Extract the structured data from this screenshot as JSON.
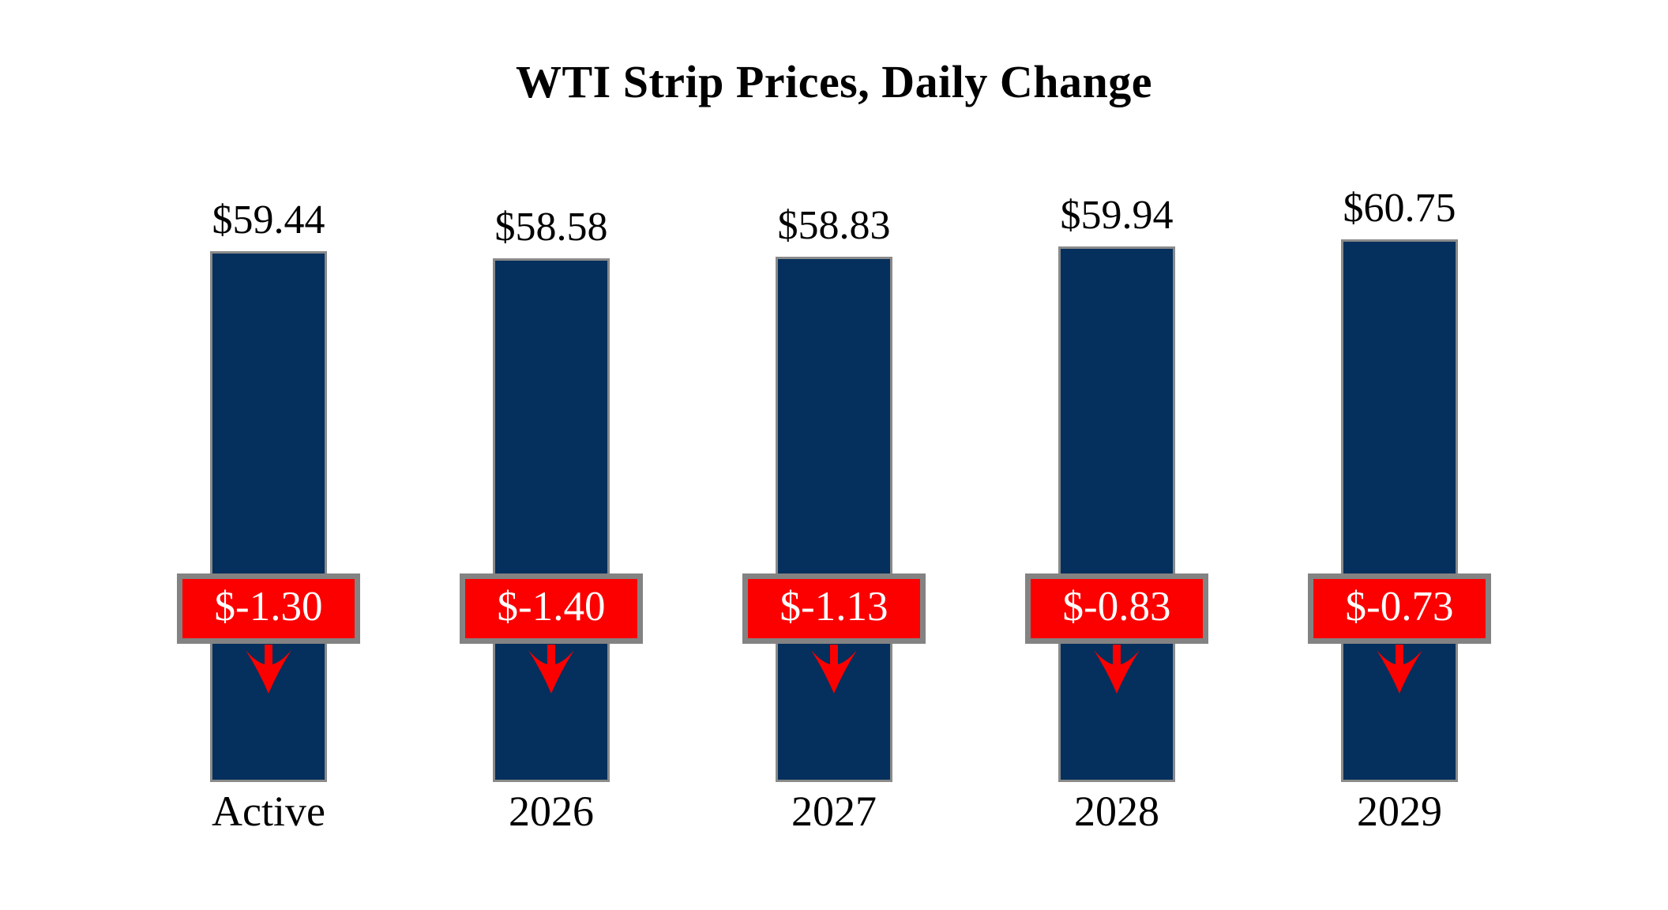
{
  "chart_data": {
    "type": "bar",
    "title": "WTI Strip Prices, Daily Change",
    "categories": [
      "Active",
      "2026",
      "2027",
      "2028",
      "2029"
    ],
    "series": [
      {
        "name": "Strip Price",
        "values": [
          59.44,
          58.58,
          58.83,
          59.94,
          60.75
        ],
        "labels": [
          "$59.44",
          "$58.58",
          "$58.83",
          "$59.94",
          "$60.75"
        ]
      },
      {
        "name": "Daily Change",
        "values": [
          -1.3,
          -1.4,
          -1.13,
          -0.83,
          -0.73
        ],
        "labels": [
          "$-1.30",
          "$-1.40",
          "$-1.13",
          "$-0.83",
          "$-0.73"
        ]
      }
    ],
    "ylim": [
      0,
      61
    ],
    "grid": false,
    "legend": "none",
    "annotation_style": "red badge with white text and red down arrow overlaid on each bar",
    "colors": {
      "bar": "#052f5c",
      "bar_border": "#8a8a8a",
      "change_box": "#fc0000",
      "change_box_border": "#838383",
      "change_text": "#ffffff",
      "label_text": "#000000",
      "arrow": "#fc0000",
      "background": "#ffffff"
    }
  }
}
